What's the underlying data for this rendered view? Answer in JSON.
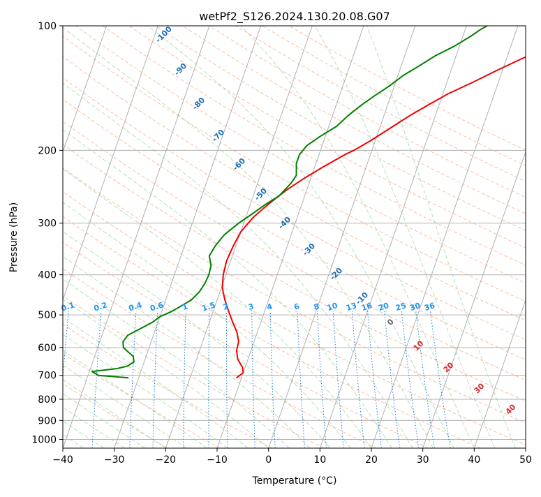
{
  "chart_data": {
    "type": "line",
    "subtype": "skew-t log-p diagram",
    "title": "wetPf2_S126.2024.130.20.08.G07",
    "xlabel": "Temperature (°C)",
    "ylabel": "Pressure (hPa)",
    "xlim": [
      -40,
      50
    ],
    "ylim": [
      1050,
      100
    ],
    "y_scale": "log",
    "x_ticks": [
      "−40",
      "−30",
      "−20",
      "−10",
      "0",
      "10",
      "20",
      "30",
      "40",
      "50"
    ],
    "y_ticks": [
      "100",
      "200",
      "300",
      "400",
      "500",
      "600",
      "700",
      "800",
      "900",
      "1000"
    ],
    "grid": true,
    "series": [
      {
        "role": "temperature",
        "color": "#ee0000",
        "points": [
          [
            -11,
            710
          ],
          [
            -10,
            690
          ],
          [
            -10.5,
            670
          ],
          [
            -12,
            640
          ],
          [
            -12.8,
            610
          ],
          [
            -13,
            580
          ],
          [
            -14,
            550
          ],
          [
            -15.5,
            520
          ],
          [
            -17,
            490
          ],
          [
            -18.5,
            460
          ],
          [
            -19.8,
            430
          ],
          [
            -20.5,
            400
          ],
          [
            -20.8,
            370
          ],
          [
            -20.5,
            340
          ],
          [
            -20,
            315
          ],
          [
            -18.5,
            290
          ],
          [
            -16.5,
            270
          ],
          [
            -14,
            250
          ],
          [
            -11.5,
            235
          ],
          [
            -8.5,
            220
          ],
          [
            -5,
            205
          ],
          [
            -3.5,
            200
          ],
          [
            -1,
            190
          ],
          [
            2.5,
            175
          ],
          [
            5,
            165
          ],
          [
            8,
            155
          ],
          [
            11,
            146
          ],
          [
            15,
            137
          ],
          [
            19,
            128
          ],
          [
            23,
            120
          ],
          [
            26,
            115
          ],
          [
            29,
            109
          ],
          [
            32,
            103
          ],
          [
            34,
            100
          ]
        ]
      },
      {
        "role": "dewpoint",
        "color": "#008000",
        "points": [
          [
            -32,
            710
          ],
          [
            -38,
            700
          ],
          [
            -39.5,
            685
          ],
          [
            -35,
            675
          ],
          [
            -33,
            665
          ],
          [
            -32,
            650
          ],
          [
            -32.5,
            630
          ],
          [
            -34,
            612
          ],
          [
            -35,
            600
          ],
          [
            -35.5,
            580
          ],
          [
            -35,
            560
          ],
          [
            -33,
            540
          ],
          [
            -31,
            520
          ],
          [
            -30,
            505
          ],
          [
            -28,
            490
          ],
          [
            -26.5,
            475
          ],
          [
            -25,
            460
          ],
          [
            -24,
            440
          ],
          [
            -23.5,
            420
          ],
          [
            -23.3,
            400
          ],
          [
            -23.5,
            380
          ],
          [
            -24.5,
            360
          ],
          [
            -24,
            340
          ],
          [
            -23,
            320
          ],
          [
            -21,
            300
          ],
          [
            -19,
            285
          ],
          [
            -17,
            270
          ],
          [
            -15,
            258
          ],
          [
            -13.5,
            240
          ],
          [
            -13,
            230
          ],
          [
            -13.8,
            215
          ],
          [
            -13.8,
            205
          ],
          [
            -13,
            195
          ],
          [
            -11,
            185
          ],
          [
            -8.5,
            175
          ],
          [
            -7,
            165
          ],
          [
            -5,
            155
          ],
          [
            -3,
            147
          ],
          [
            -1,
            140
          ],
          [
            1,
            132
          ],
          [
            3.5,
            125
          ],
          [
            6,
            118
          ],
          [
            9,
            112
          ],
          [
            11.5,
            106
          ],
          [
            13,
            102
          ],
          [
            14,
            100
          ]
        ]
      }
    ],
    "isotherm_labels": [],
    "dry_adiabat_labels": [
      "-100",
      "-90",
      "-80",
      "-70",
      "-60",
      "-50",
      "-40",
      "-30",
      "-20",
      "-10"
    ],
    "mixing_ratio_labels": [
      "0.1",
      "0.2",
      "0.4",
      "0.6",
      "1",
      "1.5",
      "2",
      "3",
      "4",
      "6",
      "8",
      "10",
      "13",
      "16",
      "20",
      "25",
      "30",
      "36"
    ],
    "moist_adiabat_labels": [
      "0",
      "10",
      "20",
      "30",
      "40"
    ],
    "colors": {
      "dry_adiabat": "#f4a582",
      "moist_adiabat": "#9fd59f",
      "mixing_ratio": "#1f77d4",
      "isotherm": "#b0b0b0",
      "dry_label": "#1f6fb4",
      "moist_label": "#d62728",
      "mixing_label": "#2196f3"
    }
  }
}
